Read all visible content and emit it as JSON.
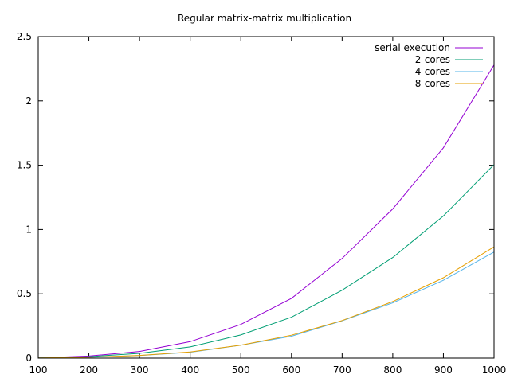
{
  "chart_data": {
    "type": "line",
    "title": "Regular matrix-matrix multiplication",
    "xlabel": "",
    "ylabel": "",
    "xlim": [
      100,
      1000
    ],
    "ylim": [
      0,
      2.5
    ],
    "xticks": [
      100,
      200,
      300,
      400,
      500,
      600,
      700,
      800,
      900,
      1000
    ],
    "yticks": [
      0,
      0.5,
      1,
      1.5,
      2,
      2.5
    ],
    "ytick_labels": [
      "0",
      "0.5",
      "1",
      "1.5",
      "2",
      "2.5"
    ],
    "grid": false,
    "legend_position": "top-right",
    "x": [
      100,
      200,
      300,
      400,
      500,
      600,
      700,
      800,
      900,
      1000
    ],
    "series": [
      {
        "name": "serial execution",
        "color": "#9400d3",
        "values": [
          0.001,
          0.016,
          0.052,
          0.128,
          0.262,
          0.465,
          0.775,
          1.16,
          1.635,
          2.28
        ]
      },
      {
        "name": "2-cores",
        "color": "#009e73",
        "values": [
          0.001,
          0.011,
          0.037,
          0.087,
          0.18,
          0.318,
          0.528,
          0.782,
          1.105,
          1.505
        ]
      },
      {
        "name": "4-cores",
        "color": "#56b4e9",
        "values": [
          0.001,
          0.006,
          0.02,
          0.046,
          0.1,
          0.17,
          0.29,
          0.43,
          0.605,
          0.825
        ]
      },
      {
        "name": "8-cores",
        "color": "#e69f00",
        "values": [
          0.001,
          0.007,
          0.021,
          0.048,
          0.101,
          0.178,
          0.292,
          0.44,
          0.625,
          0.865
        ]
      }
    ]
  }
}
